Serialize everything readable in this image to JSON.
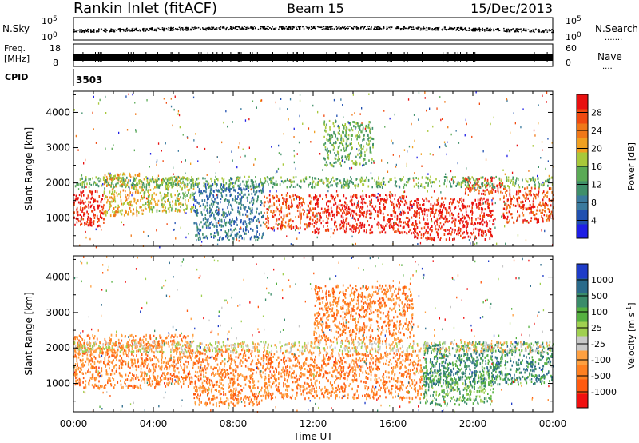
{
  "header": {
    "station": "Rankin Inlet (fitACF)",
    "beam": "Beam 15",
    "date": "15/Dec/2013"
  },
  "strip_labels": {
    "nsky": "N.Sky",
    "nsearch": "N.Search",
    "nsearch_dots": ".......",
    "freq_line1": "Freq.",
    "freq_line2": "[MHz]",
    "nave": "Nave",
    "nave_dots": "....",
    "cpid": "CPID",
    "cpid_value": "3503",
    "noise_tick_top": "10^5",
    "noise_tick_bottom": "10^0",
    "noise_tick_top_r": "10^5",
    "noise_tick_bottom_r": "10^0",
    "freq_tick_top": "18",
    "freq_tick_bottom": "8",
    "nave_tick_top": "60",
    "nave_tick_bottom": "0"
  },
  "colors": {
    "power_scale": [
      "#1e1ee6",
      "#2050b0",
      "#3a7a9e",
      "#3f8f6a",
      "#5aaa55",
      "#a8c83a",
      "#f0a020",
      "#f07818",
      "#f04a10",
      "#e81010"
    ],
    "velocity_scale": [
      "#1e3cc8",
      "#2a6a8a",
      "#3a8c6a",
      "#55b040",
      "#a0d050",
      "#c8c8c8",
      "#ffa040",
      "#ff8020",
      "#ff5a10",
      "#f01010"
    ]
  },
  "chart_data": [
    {
      "type": "heatmap",
      "title": "",
      "ylabel": "Slant Range [km]",
      "xlabel": "",
      "x_ticks": [
        "00:00",
        "04:00",
        "08:00",
        "12:00",
        "16:00",
        "20:00",
        "00:00"
      ],
      "y_ticks": [
        "1000",
        "2000",
        "3000",
        "4000"
      ],
      "ylim": [
        200,
        4600
      ],
      "xlim_hours": [
        0,
        24
      ],
      "colorbar": {
        "label": "Power [dB]",
        "ticks": [
          "4",
          "8",
          "12",
          "16",
          "20",
          "24",
          "28"
        ],
        "range": [
          0,
          32
        ]
      },
      "bands": [
        {
          "t0": 0,
          "t1": 1.5,
          "r0": 800,
          "r1": 1800,
          "level": 9
        },
        {
          "t0": 1.5,
          "t1": 3.5,
          "r0": 1100,
          "r1": 2300,
          "level": 6
        },
        {
          "t0": 3.5,
          "t1": 6,
          "r0": 1200,
          "r1": 2200,
          "level": 5
        },
        {
          "t0": 6,
          "t1": 9.5,
          "r0": 400,
          "r1": 2000,
          "level": 2
        },
        {
          "t0": 9.5,
          "t1": 12,
          "r0": 700,
          "r1": 1700,
          "level": 8
        },
        {
          "t0": 12,
          "t1": 17,
          "r0": 600,
          "r1": 1700,
          "level": 9
        },
        {
          "t0": 17,
          "t1": 21,
          "r0": 400,
          "r1": 1600,
          "level": 9
        },
        {
          "t0": 19.5,
          "t1": 21.5,
          "r0": 1700,
          "r1": 2200,
          "level": 8
        },
        {
          "t0": 21.5,
          "t1": 24,
          "r0": 900,
          "r1": 1900,
          "level": 8
        },
        {
          "t0": 0,
          "t1": 24,
          "r0": 1900,
          "r1": 2200,
          "level": 4
        },
        {
          "t0": 12.5,
          "t1": 15,
          "r0": 2500,
          "r1": 3800,
          "level": 4
        }
      ]
    },
    {
      "type": "heatmap",
      "title": "",
      "ylabel": "Slant Range [km]",
      "xlabel": "Time UT",
      "x_ticks": [
        "00:00",
        "04:00",
        "08:00",
        "12:00",
        "16:00",
        "20:00",
        "00:00"
      ],
      "y_ticks": [
        "1000",
        "2000",
        "3000",
        "4000"
      ],
      "ylim": [
        200,
        4600
      ],
      "xlim_hours": [
        0,
        24
      ],
      "colorbar": {
        "label": "Velocity [m s^-1]",
        "ticks": [
          "1000",
          "500",
          "100",
          "25",
          "-25",
          "-100",
          "-500",
          "-1000"
        ],
        "range": [
          -1200,
          1200
        ]
      },
      "bands": [
        {
          "t0": 0,
          "t1": 6,
          "r0": 900,
          "r1": 2400,
          "level": 7
        },
        {
          "t0": 6,
          "t1": 9.5,
          "r0": 400,
          "r1": 2000,
          "level": 7
        },
        {
          "t0": 9.5,
          "t1": 17.5,
          "r0": 600,
          "r1": 1900,
          "level": 7
        },
        {
          "t0": 17.5,
          "t1": 21,
          "r0": 400,
          "r1": 1400,
          "level": 3
        },
        {
          "t0": 17.5,
          "t1": 24,
          "r0": 1000,
          "r1": 2200,
          "level": 2
        },
        {
          "t0": 12,
          "t1": 17,
          "r0": 2200,
          "r1": 3800,
          "level": 7
        },
        {
          "t0": 0,
          "t1": 24,
          "r0": 1900,
          "r1": 2200,
          "level": 5
        }
      ]
    }
  ]
}
